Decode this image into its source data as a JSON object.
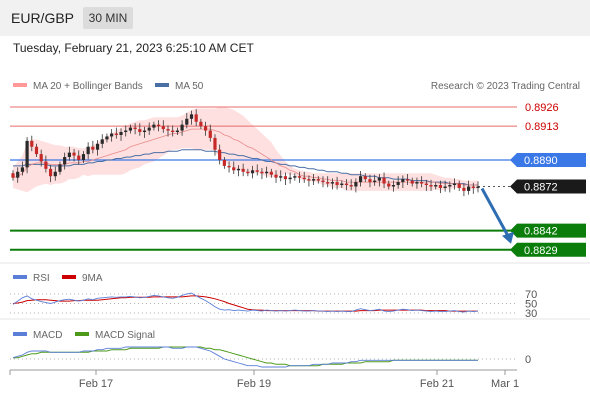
{
  "header": {
    "symbol": "EUR/GBP",
    "timeframe": "30 MIN",
    "datetime": "Tuesday, February 21, 2023 6:25:10 AM CET"
  },
  "copyright": "Research © 2023 Trading Central",
  "colors": {
    "resistance": "#e86b6b",
    "resistance_text": "#cc0000",
    "pivot": "#3b78e7",
    "support": "#0a7d0a",
    "ma20_band": "#ff9999",
    "ma50": "#4a6fa5",
    "rsi": "#5b7fd6",
    "rsi_ma": "#cc0000",
    "macd": "#5b7fd6",
    "macd_signal": "#4d9a1a",
    "arrow": "#2f6db3"
  },
  "chart_data": [
    {
      "type": "candlestick",
      "legend": [
        "MA 20 + Bollinger Bands",
        "MA 50"
      ],
      "ylim": [
        0.8815,
        0.8935
      ],
      "x_ticks": [
        "Feb 17",
        "Feb 19",
        "Feb 21",
        "Mar 1"
      ],
      "levels": [
        {
          "label": "0.8926",
          "value": 0.8926,
          "kind": "resistance"
        },
        {
          "label": "0.8913",
          "value": 0.8913,
          "kind": "resistance"
        },
        {
          "label": "0.8890",
          "value": 0.889,
          "kind": "pivot"
        },
        {
          "label": "0.8872",
          "value": 0.8872,
          "kind": "current"
        },
        {
          "label": "0.8842",
          "value": 0.8842,
          "kind": "support"
        },
        {
          "label": "0.8829",
          "value": 0.8829,
          "kind": "support"
        }
      ],
      "close_series": [
        0.8878,
        0.8882,
        0.8885,
        0.8903,
        0.8899,
        0.8894,
        0.8889,
        0.8884,
        0.8879,
        0.8882,
        0.8887,
        0.8892,
        0.8895,
        0.8893,
        0.889,
        0.8894,
        0.8899,
        0.8897,
        0.8901,
        0.8904,
        0.8906,
        0.8908,
        0.8907,
        0.8909,
        0.891,
        0.8912,
        0.8911,
        0.8909,
        0.891,
        0.8912,
        0.8914,
        0.8913,
        0.8911,
        0.891,
        0.8909,
        0.891,
        0.8914,
        0.8918,
        0.8921,
        0.8916,
        0.8913,
        0.891,
        0.8905,
        0.8897,
        0.889,
        0.8886,
        0.8885,
        0.8883,
        0.8884,
        0.8882,
        0.8881,
        0.8883,
        0.8882,
        0.8881,
        0.8882,
        0.888,
        0.8878,
        0.8879,
        0.8877,
        0.8878,
        0.8879,
        0.8878,
        0.8877,
        0.8876,
        0.8877,
        0.8876,
        0.8875,
        0.8874,
        0.8875,
        0.8873,
        0.8874,
        0.8873,
        0.8872,
        0.8875,
        0.8879,
        0.8877,
        0.8875,
        0.8876,
        0.8878,
        0.8874,
        0.8872,
        0.8873,
        0.8875,
        0.8877,
        0.8876,
        0.8874,
        0.8875,
        0.8874,
        0.8873,
        0.8872,
        0.8873,
        0.8871,
        0.8872,
        0.8873,
        0.8874,
        0.8871,
        0.8869,
        0.8872,
        0.8871,
        0.8872
      ],
      "ma20": [
        0.8878,
        0.8879,
        0.8881,
        0.8885,
        0.8887,
        0.8888,
        0.8888,
        0.8888,
        0.8887,
        0.8887,
        0.8887,
        0.8887,
        0.8888,
        0.8888,
        0.8888,
        0.8889,
        0.8889,
        0.889,
        0.8891,
        0.8892,
        0.8893,
        0.8894,
        0.8895,
        0.8896,
        0.8897,
        0.8899,
        0.89,
        0.8901,
        0.8902,
        0.8903,
        0.8904,
        0.8905,
        0.8906,
        0.8907,
        0.8908,
        0.8908,
        0.8909,
        0.891,
        0.8911,
        0.8911,
        0.8911,
        0.8911,
        0.8911,
        0.891,
        0.8909,
        0.8907,
        0.8906,
        0.8904,
        0.8903,
        0.8901,
        0.8899,
        0.8898,
        0.8896,
        0.8894,
        0.8892,
        0.889,
        0.8888,
        0.8886,
        0.8885,
        0.8883,
        0.8882,
        0.888,
        0.8879,
        0.8879,
        0.8878,
        0.8878,
        0.8877,
        0.8877,
        0.8876,
        0.8876,
        0.8876,
        0.8875,
        0.8875,
        0.8875,
        0.8875,
        0.8875,
        0.8875,
        0.8875,
        0.8875,
        0.8875,
        0.8875,
        0.8875,
        0.8875,
        0.8875,
        0.8875,
        0.8875,
        0.8875,
        0.8875,
        0.8875,
        0.8875,
        0.8875,
        0.8874,
        0.8874,
        0.8874,
        0.8874,
        0.8874,
        0.8873,
        0.8873,
        0.8873,
        0.8873
      ],
      "bb_upper": [
        0.8885,
        0.8889,
        0.8893,
        0.8902,
        0.8904,
        0.8904,
        0.8903,
        0.8902,
        0.8901,
        0.89,
        0.89,
        0.8899,
        0.8899,
        0.8899,
        0.8898,
        0.8898,
        0.8899,
        0.89,
        0.8902,
        0.8904,
        0.8906,
        0.8908,
        0.891,
        0.8912,
        0.8913,
        0.8915,
        0.8916,
        0.8917,
        0.8917,
        0.8918,
        0.8919,
        0.8919,
        0.8919,
        0.8919,
        0.8919,
        0.8919,
        0.892,
        0.8922,
        0.8924,
        0.8925,
        0.8925,
        0.8925,
        0.8925,
        0.8925,
        0.8926,
        0.8926,
        0.8925,
        0.8924,
        0.8922,
        0.892,
        0.8917,
        0.8914,
        0.8911,
        0.8908,
        0.8905,
        0.8902,
        0.8897,
        0.8893,
        0.8889,
        0.8886,
        0.8884,
        0.8883,
        0.8882,
        0.8882,
        0.8881,
        0.8881,
        0.8881,
        0.8881,
        0.8881,
        0.8881,
        0.8881,
        0.8881,
        0.8881,
        0.8881,
        0.8881,
        0.8881,
        0.8881,
        0.8881,
        0.8881,
        0.8881,
        0.8881,
        0.8881,
        0.8881,
        0.8881,
        0.8881,
        0.8881,
        0.8881,
        0.8881,
        0.8881,
        0.8881,
        0.888,
        0.8879,
        0.8878,
        0.8878,
        0.8877,
        0.8877,
        0.8876,
        0.8876,
        0.8876,
        0.8876
      ],
      "bb_lower": [
        0.8871,
        0.887,
        0.8869,
        0.8868,
        0.887,
        0.8872,
        0.8873,
        0.8874,
        0.8873,
        0.8874,
        0.8874,
        0.8875,
        0.8877,
        0.8877,
        0.8878,
        0.888,
        0.8879,
        0.888,
        0.888,
        0.888,
        0.888,
        0.888,
        0.888,
        0.888,
        0.8881,
        0.8883,
        0.8884,
        0.8885,
        0.8887,
        0.8888,
        0.8889,
        0.8891,
        0.8893,
        0.8895,
        0.8897,
        0.8897,
        0.8898,
        0.8898,
        0.8898,
        0.8897,
        0.8897,
        0.8897,
        0.8897,
        0.8895,
        0.8892,
        0.8888,
        0.8887,
        0.8884,
        0.8884,
        0.8882,
        0.8881,
        0.8882,
        0.8881,
        0.888,
        0.8879,
        0.8878,
        0.8879,
        0.8879,
        0.8881,
        0.888,
        0.888,
        0.8877,
        0.8876,
        0.8876,
        0.8875,
        0.8875,
        0.8873,
        0.8873,
        0.8871,
        0.8871,
        0.8871,
        0.8869,
        0.8869,
        0.8869,
        0.8869,
        0.8869,
        0.8869,
        0.8869,
        0.8869,
        0.8869,
        0.8869,
        0.8869,
        0.8869,
        0.8869,
        0.8869,
        0.8869,
        0.8869,
        0.8869,
        0.8869,
        0.8869,
        0.887,
        0.8869,
        0.887,
        0.887,
        0.8871,
        0.8871,
        0.887,
        0.887,
        0.887,
        0.887
      ],
      "ma50": [
        0.8886,
        0.8886,
        0.8886,
        0.8887,
        0.8887,
        0.8887,
        0.8887,
        0.8887,
        0.8886,
        0.8886,
        0.8886,
        0.8886,
        0.8886,
        0.8887,
        0.8887,
        0.8887,
        0.8888,
        0.8888,
        0.8889,
        0.8889,
        0.889,
        0.889,
        0.8891,
        0.8891,
        0.8892,
        0.8892,
        0.8893,
        0.8893,
        0.8894,
        0.8894,
        0.8895,
        0.8895,
        0.8895,
        0.8896,
        0.8896,
        0.8896,
        0.8897,
        0.8897,
        0.8897,
        0.8897,
        0.8897,
        0.8896,
        0.8896,
        0.8896,
        0.8895,
        0.8895,
        0.8894,
        0.8894,
        0.8893,
        0.8893,
        0.8892,
        0.8891,
        0.8891,
        0.889,
        0.8889,
        0.8889,
        0.8888,
        0.8887,
        0.8887,
        0.8886,
        0.8886,
        0.8885,
        0.8885,
        0.8884,
        0.8884,
        0.8883,
        0.8883,
        0.8882,
        0.8882,
        0.8882,
        0.8881,
        0.8881,
        0.888,
        0.888,
        0.888,
        0.8879,
        0.8879,
        0.8879,
        0.8878,
        0.8878,
        0.8878,
        0.8877,
        0.8877,
        0.8877,
        0.8877,
        0.8876,
        0.8876,
        0.8876,
        0.8876,
        0.8875,
        0.8875,
        0.8875,
        0.8875,
        0.8874,
        0.8874,
        0.8874,
        0.8874,
        0.8873,
        0.8873,
        0.8873
      ],
      "projection": {
        "from": 0.8872,
        "to": 0.8829
      }
    },
    {
      "type": "line",
      "legend": [
        "RSI",
        "9MA"
      ],
      "levels": [
        "70",
        "50",
        "30"
      ],
      "series": [
        {
          "name": "RSI",
          "values": [
            48,
            55,
            62,
            66,
            60,
            57,
            54,
            52,
            50,
            53,
            56,
            58,
            59,
            57,
            55,
            57,
            60,
            58,
            61,
            62,
            63,
            64,
            63,
            64,
            64,
            65,
            64,
            62,
            63,
            65,
            67,
            66,
            64,
            62,
            61,
            63,
            67,
            70,
            72,
            66,
            61,
            56,
            50,
            43,
            38,
            36,
            37,
            35,
            36,
            35,
            34,
            36,
            35,
            34,
            36,
            35,
            34,
            35,
            34,
            35,
            36,
            35,
            34,
            34,
            35,
            34,
            34,
            33,
            34,
            33,
            34,
            33,
            33,
            36,
            39,
            37,
            35,
            36,
            38,
            34,
            33,
            34,
            36,
            38,
            37,
            35,
            36,
            35,
            34,
            33,
            34,
            33,
            33,
            34,
            35,
            33,
            32,
            34,
            33,
            34
          ]
        },
        {
          "name": "9MA",
          "values": [
            50,
            51,
            53,
            56,
            57,
            58,
            58,
            58,
            57,
            56,
            55,
            55,
            55,
            56,
            56,
            57,
            57,
            57,
            57,
            58,
            59,
            60,
            61,
            62,
            62,
            63,
            63,
            63,
            63,
            63,
            64,
            64,
            64,
            64,
            64,
            64,
            64,
            65,
            66,
            66,
            65,
            64,
            62,
            60,
            57,
            54,
            50,
            47,
            44,
            41,
            38,
            37,
            36,
            36,
            35,
            35,
            35,
            35,
            35,
            35,
            35,
            35,
            35,
            35,
            35,
            34,
            34,
            34,
            34,
            34,
            34,
            34,
            34,
            34,
            35,
            35,
            35,
            35,
            36,
            36,
            36,
            36,
            36,
            36,
            36,
            36,
            36,
            36,
            35,
            35,
            35,
            35,
            35,
            34,
            34,
            34,
            34,
            34,
            34,
            34
          ]
        }
      ]
    },
    {
      "type": "line",
      "legend": [
        "MACD",
        "MACD Signal"
      ],
      "levels": [
        "0"
      ],
      "series": [
        {
          "name": "MACD",
          "values": [
            0.0001,
            0.0002,
            0.0003,
            0.0005,
            0.0006,
            0.0006,
            0.0006,
            0.0006,
            0.0005,
            0.0005,
            0.0005,
            0.0005,
            0.0005,
            0.0005,
            0.0005,
            0.0006,
            0.0006,
            0.0006,
            0.0007,
            0.0007,
            0.0008,
            0.0008,
            0.0008,
            0.0008,
            0.0009,
            0.0009,
            0.0009,
            0.0009,
            0.0009,
            0.0009,
            0.0009,
            0.0009,
            0.0009,
            0.0009,
            0.0008,
            0.0008,
            0.0008,
            0.0009,
            0.0009,
            0.0009,
            0.0008,
            0.0007,
            0.0006,
            0.0004,
            0.0002,
            0.0,
            -0.0001,
            -0.0002,
            -0.0003,
            -0.0004,
            -0.0005,
            -0.0005,
            -0.0005,
            -0.0006,
            -0.0006,
            -0.0006,
            -0.0006,
            -0.0006,
            -0.0006,
            -0.0005,
            -0.0005,
            -0.0005,
            -0.0005,
            -0.0005,
            -0.0004,
            -0.0004,
            -0.0004,
            -0.0004,
            -0.0003,
            -0.0003,
            -0.0003,
            -0.0003,
            -0.0002,
            -0.0002,
            -0.0001,
            -0.0001,
            -0.0001,
            -0.0001,
            -0.0001,
            -0.0001,
            -0.0001,
            -0.0001,
            -0.0001,
            -0.0001,
            -0.0001,
            -0.0001,
            -0.0001,
            -0.0001,
            -0.0001,
            -0.0001,
            -0.0001,
            -0.0001,
            -0.0001,
            -0.0001,
            -0.0001,
            -0.0001,
            -0.0001,
            -0.0001,
            -0.0001,
            -0.0001
          ]
        },
        {
          "name": "MACD Signal",
          "values": [
            0.0001,
            0.0001,
            0.0002,
            0.0003,
            0.0004,
            0.0004,
            0.0005,
            0.0005,
            0.0005,
            0.0005,
            0.0005,
            0.0005,
            0.0005,
            0.0005,
            0.0005,
            0.0005,
            0.0005,
            0.0006,
            0.0006,
            0.0006,
            0.0006,
            0.0007,
            0.0007,
            0.0007,
            0.0007,
            0.0008,
            0.0008,
            0.0008,
            0.0008,
            0.0008,
            0.0008,
            0.0008,
            0.0009,
            0.0009,
            0.0009,
            0.0009,
            0.0009,
            0.0009,
            0.0009,
            0.0009,
            0.0009,
            0.0008,
            0.0008,
            0.0007,
            0.0007,
            0.0006,
            0.0005,
            0.0004,
            0.0003,
            0.0002,
            0.0001,
            0.0,
            -0.0001,
            -0.0002,
            -0.0003,
            -0.0003,
            -0.0004,
            -0.0004,
            -0.0004,
            -0.0005,
            -0.0005,
            -0.0005,
            -0.0005,
            -0.0005,
            -0.0005,
            -0.0005,
            -0.0004,
            -0.0004,
            -0.0004,
            -0.0004,
            -0.0004,
            -0.0003,
            -0.0003,
            -0.0003,
            -0.0003,
            -0.0002,
            -0.0002,
            -0.0002,
            -0.0002,
            -0.0002,
            -0.0002,
            -0.0001,
            -0.0001,
            -0.0001,
            -0.0001,
            -0.0001,
            -0.0001,
            -0.0001,
            -0.0001,
            -0.0001,
            -0.0001,
            -0.0001,
            -0.0001,
            -0.0001,
            -0.0001,
            -0.0001,
            -0.0001,
            -0.0001,
            -0.0001,
            -0.0001
          ]
        }
      ]
    }
  ]
}
